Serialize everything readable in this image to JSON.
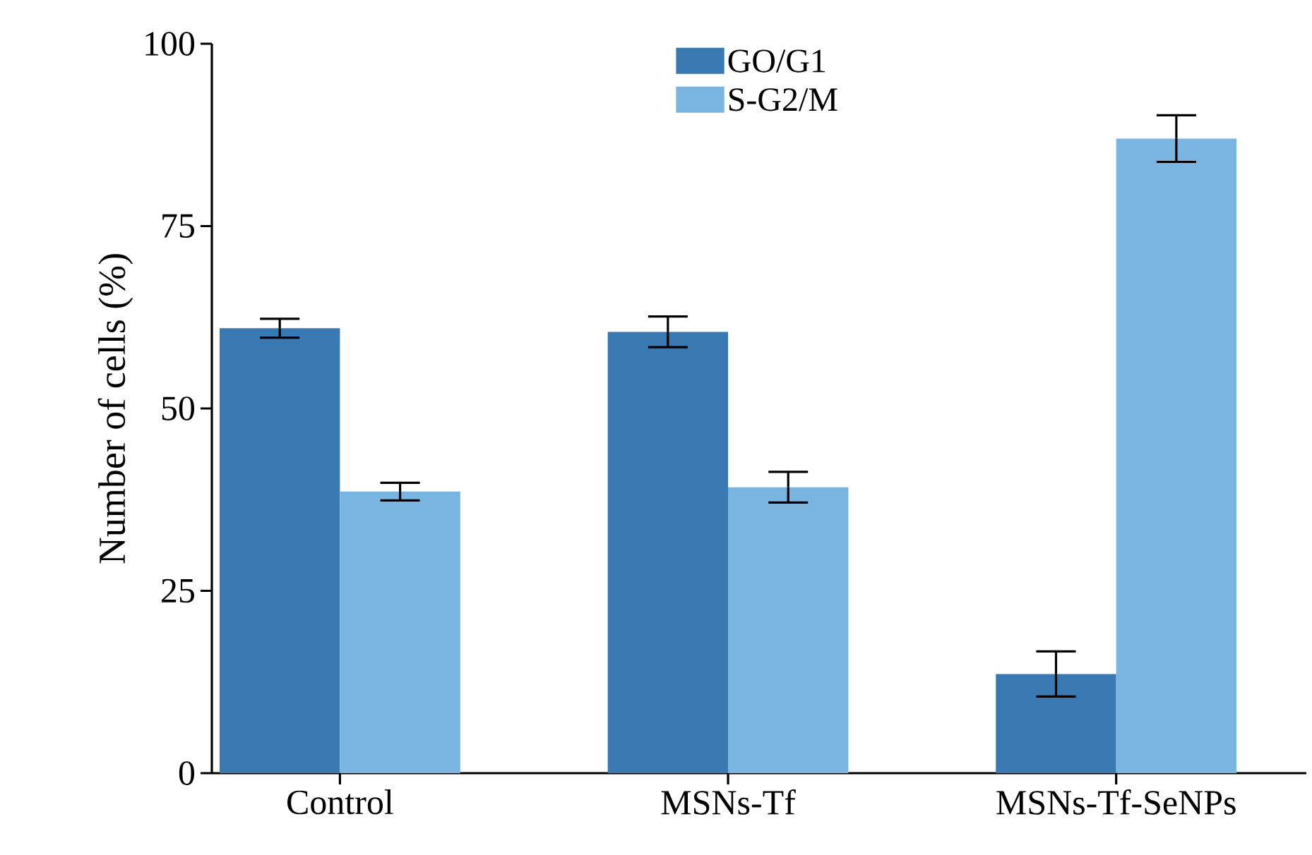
{
  "chart_data": {
    "type": "bar",
    "ylabel": "Number of cells (%)",
    "categories": [
      "Control",
      "MSNs-Tf",
      "MSNs-Tf-SeNPs"
    ],
    "series": [
      {
        "name": "GO/G1",
        "color": "#3a78b2",
        "values": [
          61,
          60.5,
          13.6
        ],
        "errors": [
          1.3,
          2.1,
          3.1
        ]
      },
      {
        "name": "S-G2/M",
        "color": "#7ab4e0",
        "values": [
          38.6,
          39.2,
          87
        ],
        "errors": [
          1.2,
          2.1,
          3.2
        ]
      }
    ],
    "ylim": [
      0,
      100
    ],
    "yticks": [
      0,
      25,
      50,
      75,
      100
    ],
    "grid": false,
    "legend": "top"
  }
}
